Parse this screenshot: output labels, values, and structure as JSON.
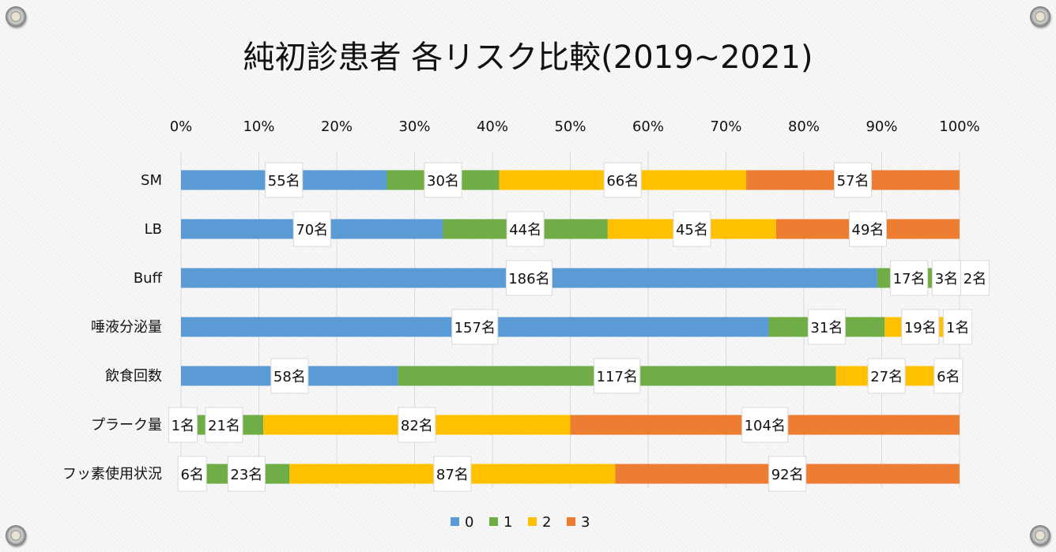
{
  "chart_data": {
    "type": "bar",
    "orientation": "horizontal",
    "stacking": "percent",
    "title": "純初診患者 各リスク比較(2019~2021)",
    "categories": [
      "SM",
      "LB",
      "Buff",
      "唾液分泌量",
      "飲食回数",
      "プラーク量",
      "フッ素使用状況"
    ],
    "series": [
      {
        "name": "0",
        "color": "#5b9bd5",
        "values": [
          55,
          70,
          186,
          157,
          58,
          1,
          6
        ]
      },
      {
        "name": "1",
        "color": "#70ad47",
        "values": [
          30,
          44,
          17,
          31,
          117,
          21,
          23
        ]
      },
      {
        "name": "2",
        "color": "#ffc000",
        "values": [
          66,
          45,
          3,
          19,
          27,
          82,
          87
        ]
      },
      {
        "name": "3",
        "color": "#ed7d31",
        "values": [
          57,
          49,
          2,
          1,
          6,
          104,
          92
        ]
      }
    ],
    "label_suffix": "名",
    "xlim": [
      0,
      100
    ],
    "xticks": [
      "0%",
      "10%",
      "20%",
      "30%",
      "40%",
      "50%",
      "60%",
      "70%",
      "80%",
      "90%",
      "100%"
    ],
    "axis_position": "top",
    "grid": true,
    "legend": "bottom"
  }
}
